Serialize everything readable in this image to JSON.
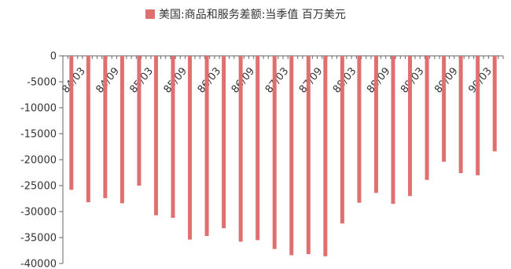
{
  "chart_data": {
    "type": "bar",
    "legend": {
      "label": "美国:商品和服务差额:当季值 百万美元",
      "color": "#e07070",
      "position": "top-center"
    },
    "title": "",
    "xlabel": "",
    "ylabel": "",
    "ylim": [
      -40000,
      0
    ],
    "yticks": [
      0,
      -5000,
      -10000,
      -15000,
      -20000,
      -25000,
      -30000,
      -35000,
      -40000
    ],
    "xtick_labels": [
      "84/03",
      "84/09",
      "85/03",
      "85/09",
      "86/03",
      "86/09",
      "87/03",
      "87/09",
      "88/03",
      "88/09",
      "89/03",
      "89/09",
      "90/03"
    ],
    "categories": [
      "84/03",
      "84/06",
      "84/09",
      "84/12",
      "85/03",
      "85/06",
      "85/09",
      "85/12",
      "86/03",
      "86/06",
      "86/09",
      "86/12",
      "87/03",
      "87/06",
      "87/09",
      "87/12",
      "88/03",
      "88/06",
      "88/09",
      "88/12",
      "89/03",
      "89/06",
      "89/09",
      "89/12",
      "90/03",
      "90/06"
    ],
    "series": [
      {
        "name": "美国:商品和服务差额:当季值 百万美元",
        "color": "#e07070",
        "values": [
          -25800,
          -28200,
          -27400,
          -28400,
          -25000,
          -30700,
          -31200,
          -35400,
          -34700,
          -33200,
          -35800,
          -35500,
          -37200,
          -38400,
          -38200,
          -38600,
          -32300,
          -28300,
          -26400,
          -28500,
          -27000,
          -23900,
          -20400,
          -22600,
          -23000,
          -18400
        ]
      }
    ],
    "grid": false
  }
}
